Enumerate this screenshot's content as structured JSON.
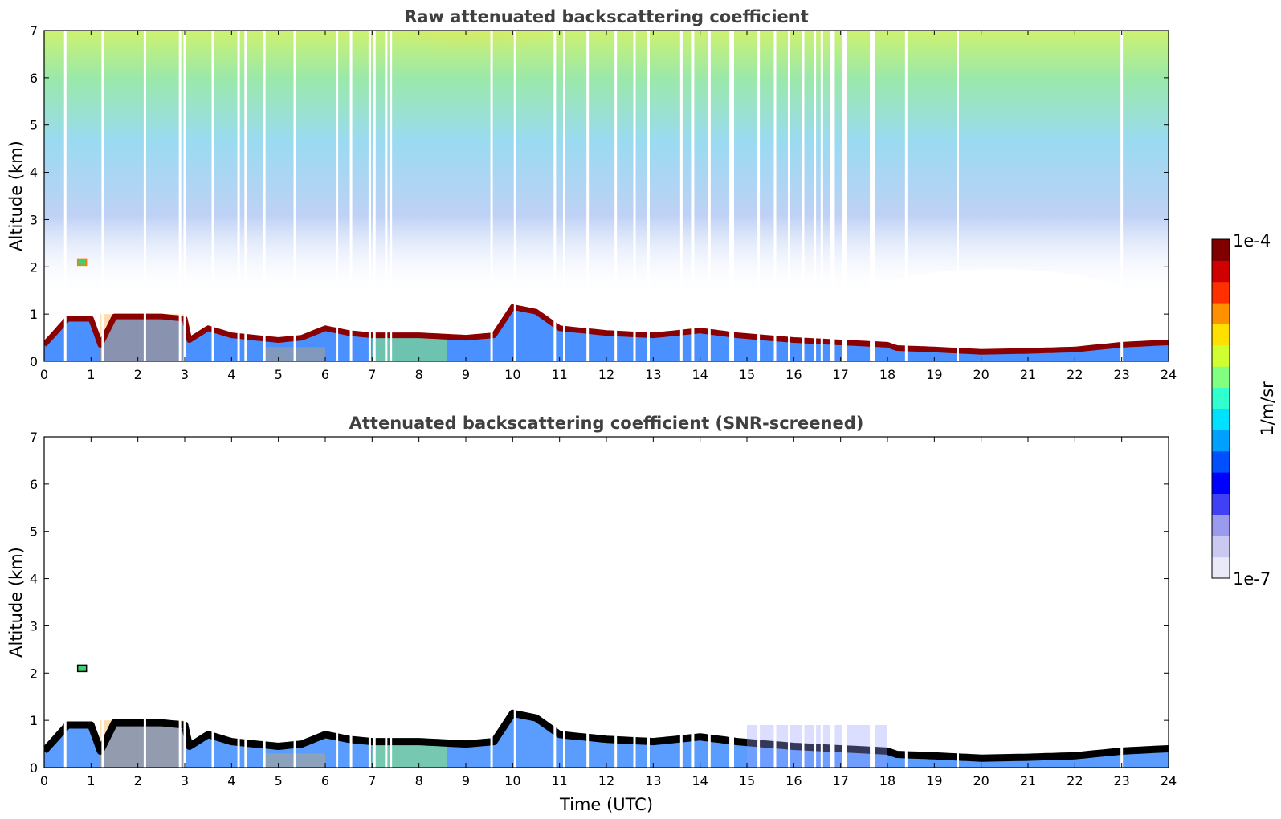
{
  "chart_data": [
    {
      "type": "heatmap",
      "title": "Raw attenuated backscattering coefficient",
      "xlabel": "",
      "ylabel": "Altitude (km)",
      "xlim": [
        0,
        24
      ],
      "ylim": [
        0,
        7
      ],
      "x_ticks": [
        "0",
        "1",
        "2",
        "3",
        "4",
        "5",
        "6",
        "7",
        "8",
        "9",
        "10",
        "11",
        "12",
        "13",
        "14",
        "15",
        "16",
        "17",
        "18",
        "19",
        "20",
        "21",
        "22",
        "23",
        "24"
      ],
      "y_ticks": [
        "0",
        "1",
        "2",
        "3",
        "4",
        "5",
        "6",
        "7"
      ],
      "layer_top_km": [
        [
          0,
          0.35
        ],
        [
          0.5,
          0.9
        ],
        [
          1,
          0.9
        ],
        [
          1.2,
          0.35
        ],
        [
          1.5,
          0.95
        ],
        [
          2,
          0.95
        ],
        [
          2.5,
          0.95
        ],
        [
          3,
          0.9
        ],
        [
          3.1,
          0.45
        ],
        [
          3.5,
          0.7
        ],
        [
          4,
          0.55
        ],
        [
          5,
          0.45
        ],
        [
          5.5,
          0.5
        ],
        [
          6,
          0.7
        ],
        [
          6.5,
          0.6
        ],
        [
          7,
          0.55
        ],
        [
          8,
          0.55
        ],
        [
          9,
          0.5
        ],
        [
          9.6,
          0.55
        ],
        [
          10,
          1.15
        ],
        [
          10.5,
          1.05
        ],
        [
          11,
          0.7
        ],
        [
          12,
          0.6
        ],
        [
          13,
          0.55
        ],
        [
          14,
          0.65
        ],
        [
          14.8,
          0.55
        ],
        [
          16,
          0.45
        ],
        [
          17,
          0.4
        ],
        [
          18,
          0.35
        ],
        [
          18.2,
          0.28
        ],
        [
          19,
          0.25
        ],
        [
          20,
          0.2
        ],
        [
          21,
          0.22
        ],
        [
          22,
          0.25
        ],
        [
          23,
          0.35
        ],
        [
          24,
          0.4
        ]
      ],
      "small_cloud": {
        "time_utc": 0.8,
        "altitude_km": 2.1
      },
      "data_gaps_utc": [
        0.45,
        1.25,
        2.15,
        2.9,
        3.0,
        3.6,
        4.15,
        4.3,
        4.7,
        5.35,
        6.25,
        6.55,
        6.95,
        7.05,
        7.3,
        7.4,
        9.55,
        10.05,
        10.9,
        11.1,
        11.6,
        12.2,
        12.6,
        12.9,
        13.6,
        13.85,
        14.2,
        14.65,
        14.7,
        15.25,
        15.6,
        15.9,
        16.2,
        16.45,
        16.6,
        16.8,
        16.85,
        17.05,
        17.1,
        17.65,
        17.7,
        18.4,
        19.5,
        23.0
      ]
    },
    {
      "type": "heatmap",
      "title": "Attenuated backscattering coefficient (SNR-screened)",
      "xlabel": "Time (UTC)",
      "ylabel": "Altitude (km)",
      "xlim": [
        0,
        24
      ],
      "ylim": [
        0,
        7
      ],
      "x_ticks": [
        "0",
        "1",
        "2",
        "3",
        "4",
        "5",
        "6",
        "7",
        "8",
        "9",
        "10",
        "11",
        "12",
        "13",
        "14",
        "15",
        "16",
        "17",
        "18",
        "19",
        "20",
        "21",
        "22",
        "23",
        "24"
      ],
      "y_ticks": [
        "0",
        "1",
        "2",
        "3",
        "4",
        "5",
        "6",
        "7"
      ],
      "screening": "SNR-screened"
    }
  ],
  "colorbar": {
    "max_label": "1e-4",
    "min_label": "1e-7",
    "unit_label": "1/m/sr",
    "colors": [
      "#e9e9f8",
      "#c9c9f2",
      "#9a9aee",
      "#4040f5",
      "#0000ff",
      "#0050ff",
      "#00a0ff",
      "#00e0ff",
      "#30ffd0",
      "#80ff80",
      "#d0ff30",
      "#ffe000",
      "#ff9000",
      "#ff3000",
      "#d00000",
      "#800000"
    ]
  },
  "colors": {
    "axis": "#000000",
    "title_text": "#404040",
    "layer": "#8b0000",
    "screened_layer": "#000000"
  }
}
